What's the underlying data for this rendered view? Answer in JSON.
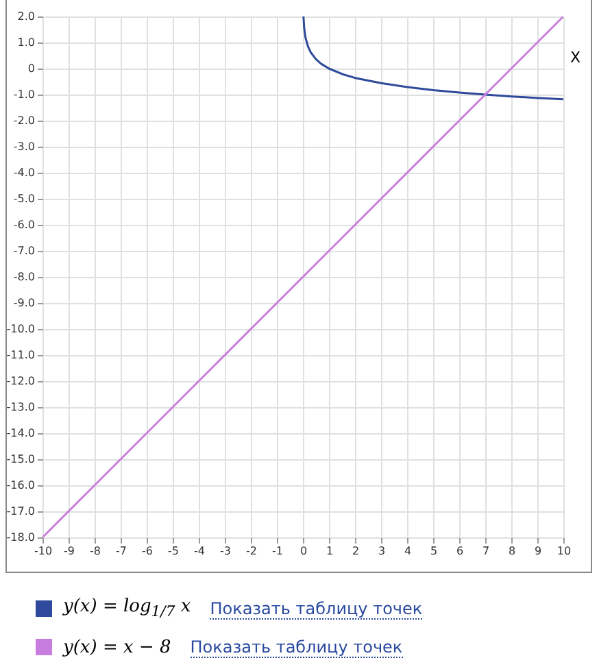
{
  "chart_data": {
    "type": "line",
    "xlabel": "X",
    "series": [
      {
        "name": "y(x) = log$_{1/7}$ x",
        "color": "#2f4a9c",
        "x": [
          0.0204,
          0.05,
          0.1,
          0.2,
          0.3,
          0.5,
          0.7,
          1,
          1.5,
          2,
          3,
          4,
          5,
          6,
          7,
          8,
          9,
          10
        ],
        "values": [
          2.0,
          1.54,
          1.18,
          0.83,
          0.62,
          0.36,
          0.18,
          0,
          -0.21,
          -0.36,
          -0.56,
          -0.71,
          -0.83,
          -0.92,
          -1.0,
          -1.07,
          -1.13,
          -1.18
        ]
      },
      {
        "name": "y(x) = x − 8",
        "color": "#c77de0",
        "x": [
          -10,
          10
        ],
        "values": [
          -18,
          2
        ]
      }
    ],
    "xlim": [
      -10,
      10
    ],
    "ylim": [
      -18,
      2
    ],
    "xticks": [
      -10,
      -9,
      -8,
      -7,
      -6,
      -5,
      -4,
      -3,
      -2,
      -1,
      0,
      1,
      2,
      3,
      4,
      5,
      6,
      7,
      8,
      9,
      10
    ],
    "yticks": [
      {
        "value": 2,
        "label": "2.0"
      },
      {
        "value": 1,
        "label": "1.0"
      },
      0,
      {
        "value": -1,
        "label": "-1.0"
      },
      {
        "value": -2,
        "label": "-2.0"
      },
      {
        "value": -3,
        "label": "-3.0"
      },
      {
        "value": -4,
        "label": "-4.0"
      },
      {
        "value": -5,
        "label": "-5.0"
      },
      {
        "value": -6,
        "label": "-6.0"
      },
      {
        "value": -7,
        "label": "-7.0"
      },
      {
        "value": -8,
        "label": "-8.0"
      },
      {
        "value": -9,
        "label": "-9.0"
      },
      {
        "value": -10,
        "label": "-10.0"
      },
      {
        "value": -11,
        "label": "-11.0"
      },
      {
        "value": -12,
        "label": "-12.0"
      },
      {
        "value": -13,
        "label": "-13.0"
      },
      {
        "value": -14,
        "label": "-14.0"
      },
      {
        "value": -15,
        "label": "-15.0"
      },
      {
        "value": -16,
        "label": "-16.0"
      },
      {
        "value": -17,
        "label": "-17.0"
      },
      {
        "value": -18,
        "label": "-18.0"
      }
    ],
    "grid": true,
    "legend": "bottom",
    "annotations": [
      "Показать таблицу точек",
      "Показать таблицу точек"
    ]
  }
}
